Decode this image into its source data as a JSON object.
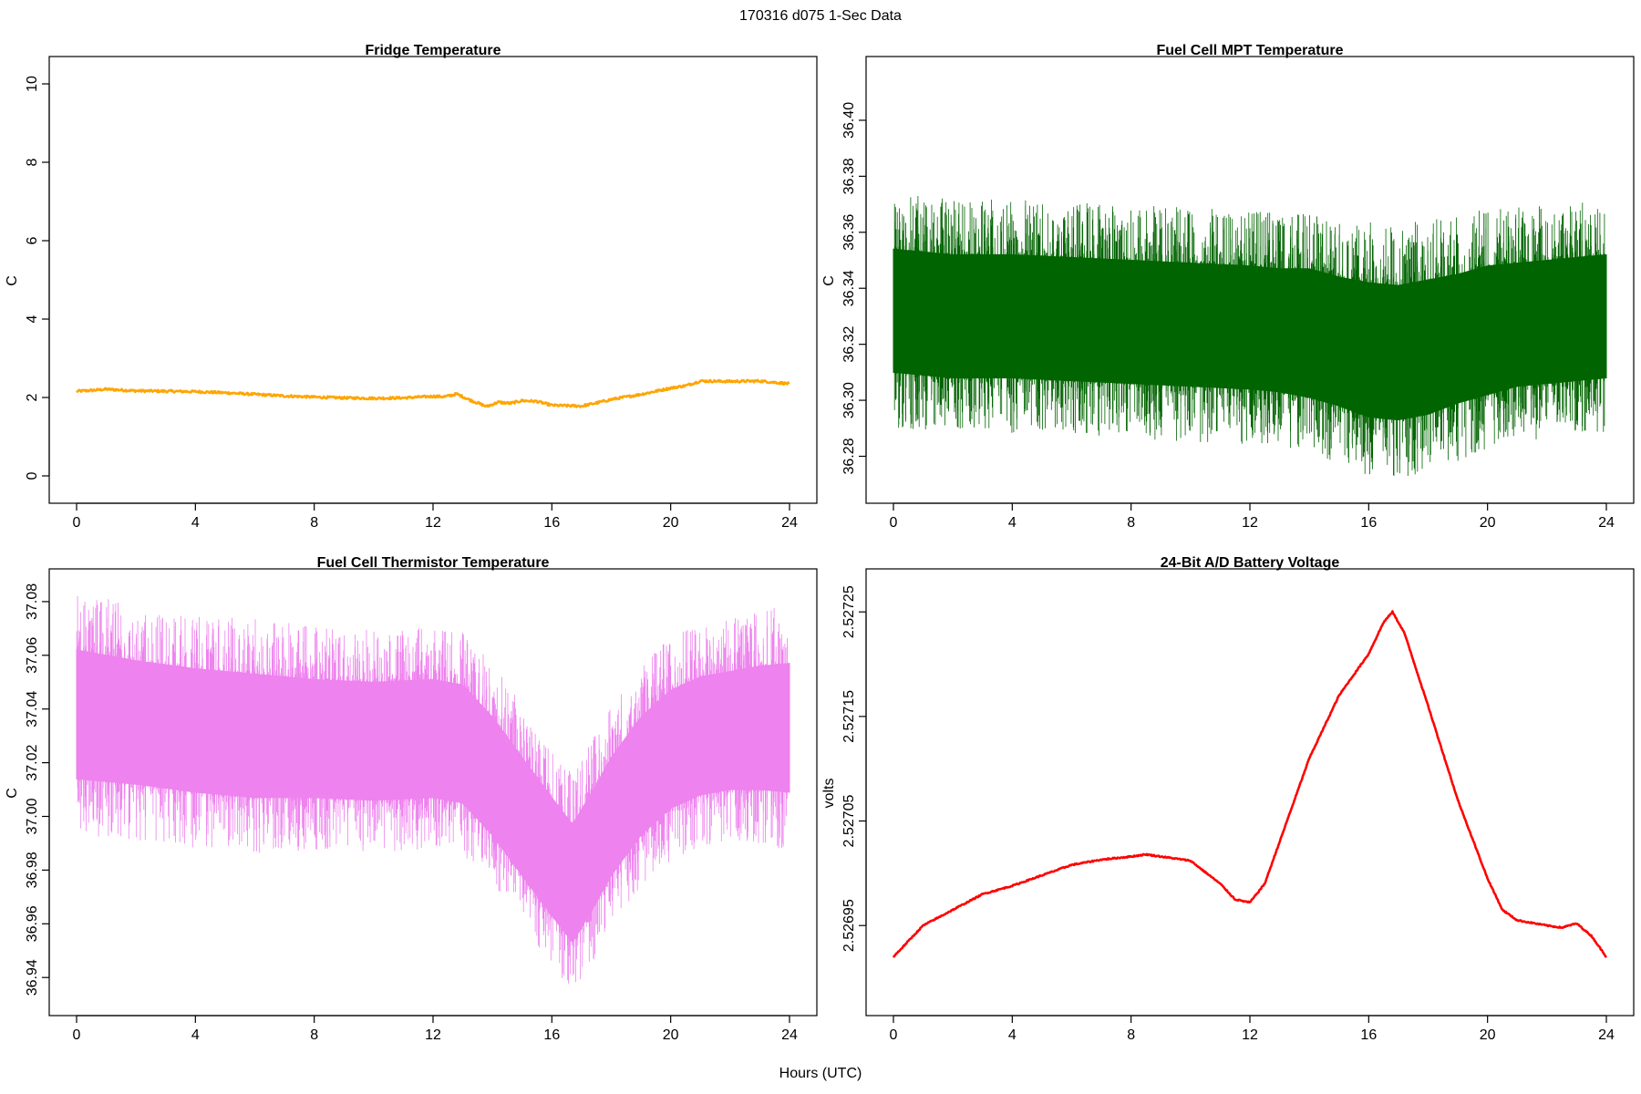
{
  "figure": {
    "title": "170316   d075   1-Sec Data",
    "xlabel": "Hours (UTC)"
  },
  "chart_data": [
    {
      "type": "line",
      "title": "Fridge Temperature",
      "ylabel": "C",
      "color": "#ffa500",
      "xlim": [
        0,
        24
      ],
      "ylim": [
        0,
        10
      ],
      "xticks": [
        "0",
        "4",
        "8",
        "12",
        "16",
        "20",
        "24"
      ],
      "yticks": [
        "0",
        "2",
        "4",
        "6",
        "8",
        "10"
      ],
      "noise": 0.03,
      "series": [
        {
          "x": [
            0,
            0.5,
            1,
            2,
            3,
            4,
            5,
            6,
            7,
            8,
            9,
            10,
            11,
            12,
            12.4,
            12.8,
            13.2,
            13.8,
            14.2,
            14.6,
            15,
            15.5,
            16,
            17,
            17.5,
            18,
            19,
            20,
            20.5,
            21,
            22,
            23,
            24
          ],
          "y": [
            2.16,
            2.18,
            2.21,
            2.17,
            2.16,
            2.15,
            2.12,
            2.08,
            2.04,
            2.01,
            1.99,
            1.98,
            1.99,
            2.03,
            2.02,
            2.09,
            1.95,
            1.77,
            1.88,
            1.85,
            1.92,
            1.9,
            1.8,
            1.78,
            1.86,
            1.95,
            2.08,
            2.24,
            2.3,
            2.42,
            2.41,
            2.42,
            2.35
          ]
        }
      ]
    },
    {
      "type": "line",
      "title": "Fuel Cell MPT Temperature",
      "ylabel": "C",
      "color": "#006400",
      "xlim": [
        0,
        24
      ],
      "ylim": [
        36.273,
        36.413
      ],
      "xticks": [
        "0",
        "4",
        "8",
        "12",
        "16",
        "20",
        "24"
      ],
      "yticks": [
        "36.28",
        "36.30",
        "36.32",
        "36.34",
        "36.36",
        "36.38",
        "36.40"
      ],
      "band": {
        "x": [
          0,
          2,
          4,
          6,
          8,
          10,
          12,
          13,
          14,
          15,
          16,
          17,
          18,
          19,
          20,
          21,
          22,
          23,
          24
        ],
        "center": [
          36.332,
          36.33,
          36.33,
          36.329,
          36.328,
          36.327,
          36.326,
          36.325,
          36.324,
          36.321,
          36.318,
          36.317,
          36.319,
          36.322,
          36.325,
          36.327,
          36.328,
          36.329,
          36.33
        ],
        "halfwidth": [
          0.022,
          0.022,
          0.022,
          0.022,
          0.022,
          0.022,
          0.022,
          0.022,
          0.023,
          0.023,
          0.024,
          0.024,
          0.024,
          0.023,
          0.023,
          0.022,
          0.022,
          0.022,
          0.022
        ]
      }
    },
    {
      "type": "line",
      "title": "Fuel Cell Thermistor Temperature",
      "ylabel": "C",
      "color": "#ee82ee",
      "xlim": [
        0,
        24
      ],
      "ylim": [
        36.936,
        37.082
      ],
      "xticks": [
        "0",
        "4",
        "8",
        "12",
        "16",
        "20",
        "24"
      ],
      "yticks": [
        "36.94",
        "36.96",
        "36.98",
        "37.00",
        "37.02",
        "37.04",
        "37.06",
        "37.08"
      ],
      "band": {
        "x": [
          0,
          2,
          4,
          6,
          8,
          10,
          12,
          13,
          14,
          15,
          16,
          16.7,
          17.5,
          18,
          19,
          20,
          21,
          22,
          23,
          24
        ],
        "center": [
          37.038,
          37.035,
          37.032,
          37.03,
          37.029,
          37.028,
          37.029,
          37.027,
          37.015,
          37.0,
          36.985,
          36.975,
          36.99,
          37.0,
          37.015,
          37.025,
          37.03,
          37.032,
          37.033,
          37.033
        ],
        "halfwidth": [
          0.024,
          0.023,
          0.023,
          0.023,
          0.022,
          0.022,
          0.022,
          0.022,
          0.022,
          0.022,
          0.022,
          0.022,
          0.022,
          0.022,
          0.022,
          0.022,
          0.022,
          0.022,
          0.023,
          0.024
        ]
      }
    },
    {
      "type": "line",
      "title": "24-Bit A/D Battery Voltage",
      "ylabel": "volts",
      "color": "#ff0000",
      "xlim": [
        0,
        24
      ],
      "ylim": [
        2.52689,
        2.527265
      ],
      "xticks": [
        "0",
        "4",
        "8",
        "12",
        "16",
        "20",
        "24"
      ],
      "yticks": [
        "2.52695",
        "2.52705",
        "2.52715",
        "2.52725"
      ],
      "noise": 6e-07,
      "series": [
        {
          "x": [
            0,
            0.5,
            1,
            2,
            3,
            4,
            5,
            6,
            7,
            8,
            8.5,
            9,
            10,
            11,
            11.5,
            12,
            12.5,
            13,
            14,
            15,
            16,
            16.5,
            16.8,
            17.2,
            18,
            19,
            20,
            20.5,
            21,
            22,
            22.5,
            23,
            23.5,
            24
          ],
          "y": [
            2.52692,
            2.526935,
            2.52695,
            2.526965,
            2.52698,
            2.526988,
            2.526998,
            2.527008,
            2.527013,
            2.527016,
            2.527018,
            2.527016,
            2.527012,
            2.52699,
            2.526975,
            2.526972,
            2.52699,
            2.52703,
            2.52711,
            2.52717,
            2.52721,
            2.52724,
            2.52725,
            2.52723,
            2.52716,
            2.52707,
            2.526995,
            2.526965,
            2.526955,
            2.52695,
            2.526948,
            2.526952,
            2.52694,
            2.52692
          ]
        }
      ]
    }
  ]
}
